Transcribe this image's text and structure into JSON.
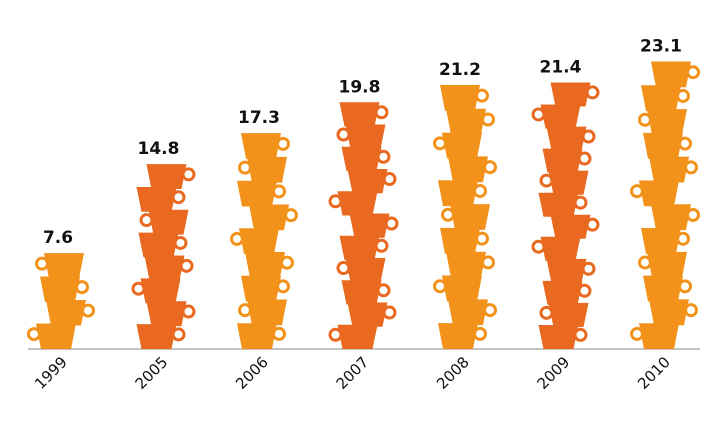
{
  "chart_data": {
    "type": "bar",
    "title": "",
    "xlabel": "",
    "ylabel": "",
    "categories": [
      "1999",
      "2005",
      "2006",
      "2007",
      "2008",
      "2009",
      "2010"
    ],
    "values": [
      7.6,
      14.8,
      17.3,
      19.8,
      21.2,
      21.4,
      23.1
    ],
    "value_labels": [
      "7.6",
      "14.8",
      "17.3",
      "19.8",
      "21.2",
      "21.4",
      "23.1"
    ],
    "ylim": [
      0,
      25
    ],
    "grid": false,
    "legend": "none",
    "mark_style": "stacked-cups",
    "colors": {
      "light": "#f2921b",
      "dark": "#e8691f",
      "handle": "#f5a84e",
      "axis": "#b0b0b0",
      "text": "#111111"
    },
    "bar_color_pattern": [
      "light",
      "dark",
      "light",
      "dark",
      "light",
      "dark",
      "light"
    ]
  }
}
